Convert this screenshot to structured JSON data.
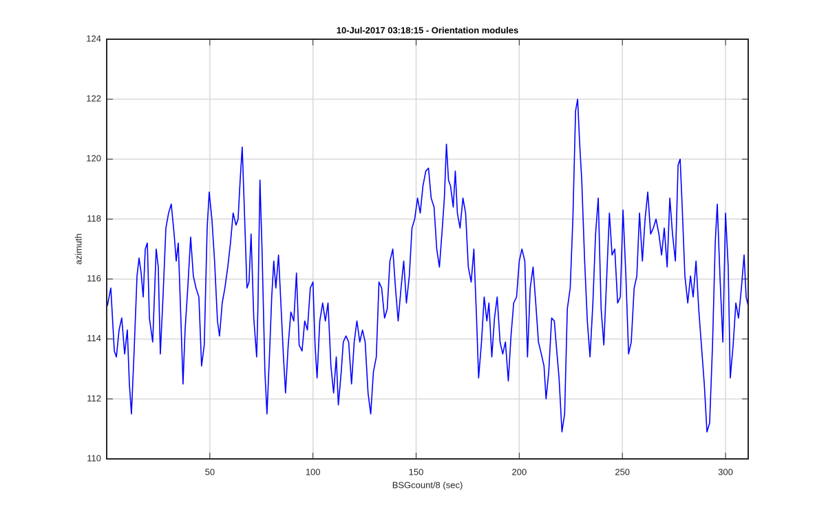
{
  "chart_data": {
    "type": "line",
    "title": "10-Jul-2017 03:18:15 - Orientation modules",
    "xlabel": "BSGcount/8 (sec)",
    "ylabel": "azimuth",
    "xlim": [
      0,
      311
    ],
    "ylim": [
      110,
      124
    ],
    "xticks": [
      50,
      100,
      150,
      200,
      250,
      300
    ],
    "yticks": [
      110,
      112,
      114,
      116,
      118,
      120,
      122,
      124
    ],
    "grid": true,
    "series": [
      {
        "color": "#0000ff",
        "x": [
          0.3,
          2,
          3.7,
          4.7,
          6,
          7.3,
          8.7,
          10,
          11,
          12,
          13.3,
          14.7,
          15.7,
          16.7,
          17.7,
          18.7,
          19.7,
          20.7,
          22.3,
          24,
          25,
          26,
          27.3,
          28.7,
          30,
          31.3,
          32.7,
          33.7,
          34.7,
          36,
          37,
          38,
          39.3,
          40.7,
          42,
          43.3,
          44.7,
          46,
          47.3,
          48.7,
          49.7,
          51,
          52.3,
          53.7,
          54.7,
          56,
          57.3,
          58.7,
          60,
          61.3,
          62.7,
          63.7,
          64.7,
          65.7,
          66.7,
          68,
          69,
          70,
          71.3,
          72.7,
          73.3,
          74.3,
          75.3,
          76.7,
          77.7,
          79,
          80,
          81,
          82,
          83.3,
          84.3,
          85.7,
          86.7,
          88,
          89.3,
          90.7,
          92,
          93.3,
          94.7,
          96,
          97.3,
          98.7,
          100,
          101,
          102,
          103.3,
          104.7,
          106,
          107.3,
          108.7,
          110,
          111.3,
          112.3,
          113.7,
          114.7,
          116,
          117.3,
          118.7,
          120,
          121.3,
          122.7,
          124,
          125.3,
          126.7,
          128,
          129.3,
          130.7,
          132,
          133.3,
          134.7,
          136,
          137.3,
          138.7,
          140,
          141.3,
          142.7,
          144,
          145.3,
          146.7,
          148,
          149.3,
          150.7,
          152,
          153.3,
          154.7,
          156,
          157.3,
          158.7,
          160,
          161.3,
          162.7,
          163.7,
          164.7,
          165.7,
          166.7,
          168,
          169,
          170,
          171.3,
          172.7,
          174,
          175.3,
          176.7,
          178,
          179.3,
          180.3,
          181.7,
          183,
          184.3,
          185.3,
          186.7,
          188,
          189.3,
          190.7,
          192,
          193.3,
          194.7,
          196,
          197.3,
          198.7,
          200,
          201.3,
          202.7,
          204,
          205.3,
          206.7,
          208,
          209.3,
          210.7,
          212,
          213,
          214.3,
          215.7,
          217,
          218.3,
          219.3,
          220.7,
          222,
          223.3,
          224.7,
          226,
          227.3,
          228.3,
          229.3,
          230.3,
          231.7,
          233,
          234.3,
          235.7,
          237,
          238.3,
          239.7,
          241,
          242.3,
          243.7,
          245,
          246.3,
          247.7,
          249,
          250.3,
          251.7,
          253,
          254.3,
          255.7,
          257,
          258.3,
          259.7,
          261,
          262.3,
          263.7,
          265,
          266.3,
          267.7,
          269,
          270.3,
          271.7,
          273,
          274.3,
          275.7,
          277,
          278,
          279,
          280.3,
          281.7,
          283,
          284.3,
          285.7,
          287,
          288.3,
          289.7,
          291,
          292.3,
          293.7,
          295,
          296,
          297.3,
          298.7,
          300,
          301.3,
          302.3,
          303.7,
          305,
          306.3,
          307.7,
          309,
          310,
          311
        ],
        "values": [
          115.1,
          115.7,
          113.6,
          113.4,
          114.3,
          114.7,
          113.5,
          114.3,
          112.5,
          111.5,
          113.6,
          116.1,
          116.7,
          116.2,
          115.4,
          117,
          117.2,
          114.7,
          113.9,
          117,
          116.4,
          113.5,
          115.4,
          117.7,
          118.2,
          118.5,
          117.5,
          116.6,
          117.2,
          114.6,
          112.5,
          114.3,
          115.7,
          117.4,
          116.1,
          115.7,
          115.4,
          113.1,
          113.8,
          117.7,
          118.9,
          118,
          116.6,
          114.6,
          114.1,
          115.2,
          115.7,
          116.4,
          117.2,
          118.2,
          117.8,
          118,
          119.3,
          120.4,
          118.4,
          115.7,
          115.9,
          117.5,
          114.7,
          113.4,
          115,
          119.3,
          117,
          112.9,
          111.5,
          113.6,
          115.4,
          116.6,
          115.7,
          116.8,
          115.4,
          113.4,
          112.2,
          113.8,
          114.9,
          114.6,
          116.2,
          113.8,
          113.6,
          114.6,
          114.3,
          115.7,
          115.9,
          113.8,
          112.7,
          114.6,
          115.2,
          114.6,
          115.2,
          113.1,
          112.2,
          113.4,
          111.8,
          112.9,
          113.9,
          114.1,
          113.9,
          112.5,
          113.9,
          114.6,
          113.9,
          114.3,
          113.9,
          112.2,
          111.5,
          112.9,
          113.4,
          115.9,
          115.7,
          114.7,
          115,
          116.6,
          117,
          115.7,
          114.6,
          115.7,
          116.6,
          115.2,
          116.1,
          117.7,
          118,
          118.7,
          118.2,
          119.1,
          119.6,
          119.7,
          118.7,
          118.4,
          117,
          116.4,
          117.7,
          118.7,
          120.5,
          119.3,
          119.1,
          118.4,
          119.6,
          118.2,
          117.7,
          118.7,
          118.2,
          116.4,
          115.9,
          117,
          114.7,
          112.7,
          113.9,
          115.4,
          114.6,
          115.2,
          113.4,
          114.7,
          115.4,
          113.9,
          113.5,
          113.9,
          112.6,
          114.1,
          115.2,
          115.4,
          116.6,
          117,
          116.6,
          113.4,
          115.7,
          116.4,
          115.2,
          113.9,
          113.5,
          113.1,
          112,
          112.9,
          114.7,
          114.6,
          113.5,
          112.7,
          110.9,
          111.5,
          115,
          115.7,
          118,
          121.6,
          122,
          120.5,
          119.3,
          116.6,
          114.6,
          113.4,
          115.2,
          117.5,
          118.7,
          115,
          113.8,
          115.9,
          118.2,
          116.8,
          117,
          115.2,
          115.4,
          118.3,
          116.1,
          113.5,
          113.9,
          115.7,
          116.1,
          118.2,
          116.6,
          118,
          118.9,
          117.5,
          117.7,
          118,
          117.5,
          116.8,
          117.7,
          116.4,
          118.7,
          117.5,
          116.6,
          119.8,
          120,
          118.4,
          116.1,
          115.2,
          116.1,
          115.4,
          116.6,
          115,
          113.8,
          112.5,
          110.9,
          111.2,
          113.8,
          117.2,
          118.5,
          116.1,
          113.9,
          118.2,
          116.4,
          112.7,
          113.8,
          115.2,
          114.7,
          115.7,
          116.8,
          115.4,
          115.1
        ]
      }
    ]
  }
}
